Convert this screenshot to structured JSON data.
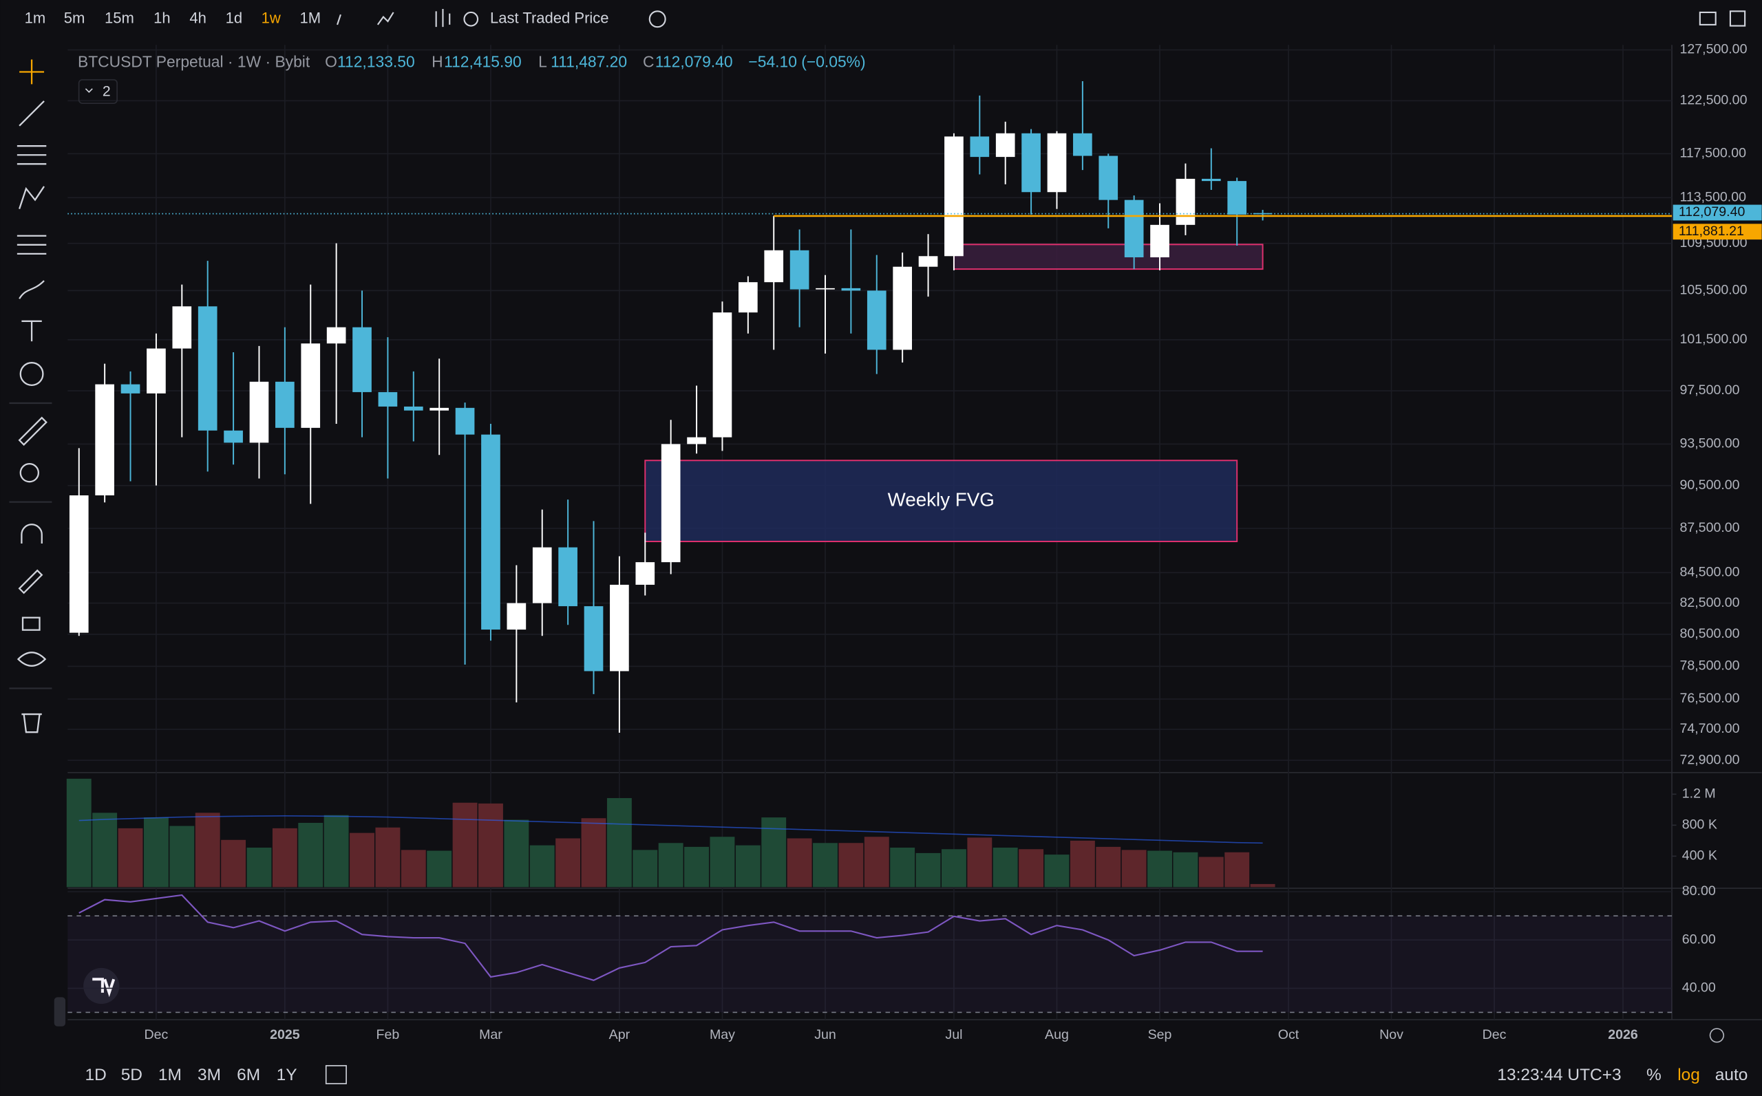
{
  "toolbar": {
    "intervals": [
      "1m",
      "5m",
      "15m",
      "1h",
      "4h",
      "1d",
      "1w",
      "1M"
    ],
    "active": 6,
    "price_source": "Last Traded Price"
  },
  "footer": {
    "ranges": [
      "1D",
      "5D",
      "1M",
      "3M",
      "6M",
      "1Y"
    ],
    "clock": "13:23:44 UTC+3",
    "scale_buttons": [
      "%",
      "log",
      "auto"
    ]
  },
  "chart_data": {
    "type": "candlestick",
    "legend": {
      "symbol": "BTCUSDT Perpetual · 1W · Bybit",
      "letters": [
        "O",
        "H",
        "L",
        "C"
      ],
      "values": [
        "112,133.50",
        "112,415.90",
        "111,487.20",
        "112,079.40"
      ],
      "change": "−54.10 (−0.05%)",
      "collapsed": "2"
    },
    "open": [
      80600,
      89800,
      98000,
      97300,
      100800,
      104200,
      94500,
      93600,
      98200,
      94700,
      101200,
      102500,
      97400,
      96300,
      96000,
      96200,
      94200,
      80800,
      82500,
      86200,
      82300,
      78200,
      83700,
      85200,
      93500,
      94000,
      103700,
      106200,
      108900,
      105600,
      105700,
      105500,
      100700,
      107500,
      108400,
      119100,
      117200,
      119400,
      114000,
      119400,
      117300,
      113300,
      108300,
      111100,
      115200,
      115000,
      112133.5
    ],
    "high": [
      93200,
      99600,
      99000,
      102000,
      106000,
      108000,
      100500,
      101000,
      102500,
      106000,
      109500,
      105500,
      101700,
      99000,
      100000,
      96600,
      95000,
      85000,
      88800,
      89500,
      88000,
      85600,
      87200,
      95300,
      97900,
      104600,
      106700,
      111900,
      110700,
      106800,
      110700,
      108500,
      108700,
      110300,
      119400,
      123000,
      120500,
      119800,
      119600,
      124400,
      117500,
      113700,
      113000,
      116600,
      118000,
      115300,
      112415.9
    ],
    "low": [
      80400,
      89300,
      90800,
      90500,
      94000,
      91500,
      92000,
      91000,
      91300,
      89200,
      95000,
      94000,
      91000,
      93700,
      92700,
      78600,
      80100,
      76300,
      80400,
      81100,
      76800,
      74500,
      83000,
      84400,
      92800,
      93000,
      102000,
      100700,
      102500,
      100400,
      102000,
      98800,
      99700,
      105000,
      107200,
      115600,
      114700,
      112000,
      112500,
      116000,
      110800,
      107300,
      107200,
      110200,
      114200,
      109300,
      111487.2
    ],
    "close": [
      89800,
      98000,
      97300,
      100800,
      104200,
      94500,
      93600,
      98200,
      94700,
      101200,
      102500,
      97400,
      96300,
      96000,
      96200,
      94200,
      80800,
      82500,
      86200,
      82300,
      78200,
      83700,
      85200,
      93500,
      94000,
      103700,
      106200,
      108900,
      105600,
      105700,
      105500,
      100700,
      107500,
      108400,
      119100,
      117200,
      119400,
      114000,
      119400,
      117300,
      113300,
      108300,
      111100,
      115200,
      115000,
      112000,
      112079.4
    ],
    "up_color": "#ffffff",
    "down_color": "#4db6d9",
    "log": true,
    "grid": true,
    "ylim": [
      72200,
      128000
    ],
    "yticks": [
      {
        "value": 127500,
        "label": "127,500.00"
      },
      {
        "value": 122500,
        "label": "122,500.00"
      },
      {
        "value": 117500,
        "label": "117,500.00"
      },
      {
        "value": 113500,
        "label": "113,500.00"
      },
      {
        "value": 109500,
        "label": "109,500.00"
      },
      {
        "value": 105500,
        "label": "105,500.00"
      },
      {
        "value": 101500,
        "label": "101,500.00"
      },
      {
        "value": 97500,
        "label": "97,500.00"
      },
      {
        "value": 93500,
        "label": "93,500.00"
      },
      {
        "value": 90500,
        "label": "90,500.00"
      },
      {
        "value": 87500,
        "label": "87,500.00"
      },
      {
        "value": 84500,
        "label": "84,500.00"
      },
      {
        "value": 82500,
        "label": "82,500.00"
      },
      {
        "value": 80500,
        "label": "80,500.00"
      },
      {
        "value": 78500,
        "label": "78,500.00"
      },
      {
        "value": 76500,
        "label": "76,500.00"
      },
      {
        "value": 74700,
        "label": "74,700.00"
      },
      {
        "value": 72900,
        "label": "72,900.00"
      }
    ],
    "xlim": [
      -0.44,
      61.9
    ],
    "xticks": [
      {
        "value": 3,
        "label": "Dec"
      },
      {
        "value": 8,
        "label": "2025"
      },
      {
        "value": 12,
        "label": "Feb"
      },
      {
        "value": 16,
        "label": "Mar"
      },
      {
        "value": 21,
        "label": "Apr"
      },
      {
        "value": 25,
        "label": "May"
      },
      {
        "value": 29,
        "label": "Jun"
      },
      {
        "value": 34,
        "label": "Jul"
      },
      {
        "value": 38,
        "label": "Aug"
      },
      {
        "value": 42,
        "label": "Sep"
      },
      {
        "value": 47,
        "label": "Oct"
      },
      {
        "value": 51,
        "label": "Nov"
      },
      {
        "value": 55,
        "label": "Dec"
      },
      {
        "value": 60,
        "label": "2026"
      }
    ],
    "price_lines": [
      {
        "value": 112079.4,
        "label": "112,079.40",
        "color": "#4db6d9"
      },
      {
        "value": 111881.21,
        "label": "111,881.21",
        "color": "#f7a600"
      }
    ],
    "zones": [
      {
        "label": "Weekly FVG",
        "top": 92300,
        "bottom": 86600,
        "start": 22,
        "end": 45,
        "color": "#e0306e",
        "fill": "#1e2a5a"
      },
      {
        "top": 109400,
        "bottom": 107300,
        "start": 34,
        "end": 46,
        "color": "#e0306e",
        "fill": "#3a1e3e"
      }
    ],
    "volume": {
      "values": [
        1400000,
        960000,
        760000,
        900000,
        790000,
        960000,
        610000,
        510000,
        760000,
        830000,
        930000,
        700000,
        770000,
        480000,
        470000,
        1090000,
        1080000,
        870000,
        540000,
        630000,
        890000,
        1150000,
        480000,
        570000,
        520000,
        650000,
        540000,
        900000,
        630000,
        570000,
        570000,
        650000,
        510000,
        440000,
        490000,
        640000,
        510000,
        490000,
        420000,
        600000,
        520000,
        480000,
        470000,
        450000,
        390000,
        450000,
        40000
      ],
      "ma": [
        860000,
        875000,
        885000,
        895000,
        905000,
        910000,
        915000,
        918000,
        920000,
        918000,
        915000,
        910000,
        905000,
        895000,
        885000,
        875000,
        865000,
        855000,
        845000,
        835000,
        825000,
        815000,
        805000,
        795000,
        785000,
        775000,
        765000,
        755000,
        745000,
        735000,
        725000,
        715000,
        705000,
        695000,
        685000,
        675000,
        665000,
        655000,
        645000,
        635000,
        625000,
        615000,
        605000,
        595000,
        585000,
        575000,
        570000
      ],
      "up_color": "#1f4a36",
      "down_color": "#5e262b",
      "ma_color": "#2962ff",
      "ylim": [
        0,
        1450000
      ],
      "yticks": [
        {
          "value": 1200000,
          "label": "1.2 M"
        },
        {
          "value": 800000,
          "label": "800 K"
        },
        {
          "value": 400000,
          "label": "400 K"
        }
      ]
    },
    "rsi": {
      "values": [
        71.2,
        76.7,
        75.8,
        77.2,
        78.6,
        67.4,
        65.1,
        67.9,
        63.7,
        67.4,
        67.9,
        62.3,
        61.4,
        60.9,
        60.9,
        58.6,
        44.7,
        46.5,
        49.8,
        46.5,
        43.3,
        48.4,
        50.7,
        57.2,
        57.7,
        64.2,
        66.0,
        67.4,
        63.7,
        63.7,
        63.7,
        60.9,
        61.9,
        63.3,
        69.8,
        67.9,
        68.8,
        62.3,
        66.0,
        64.2,
        60.0,
        53.5,
        55.8,
        59.1,
        59.1,
        55.3,
        55.3
      ],
      "color": "#7e57c2",
      "bands": [
        70,
        30
      ],
      "ylim": [
        27,
        80.5
      ],
      "yticks": [
        {
          "value": 80,
          "label": "80.00"
        },
        {
          "value": 60,
          "label": "60.00"
        },
        {
          "value": 40,
          "label": "40.00"
        }
      ]
    }
  }
}
